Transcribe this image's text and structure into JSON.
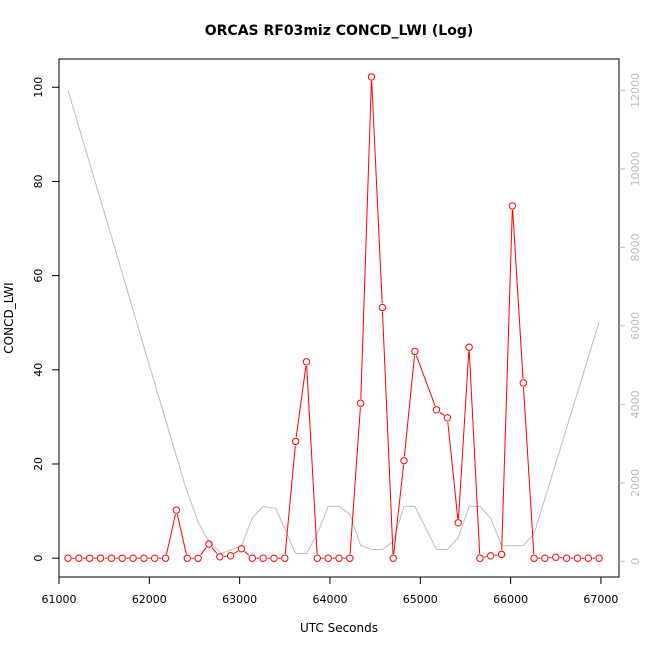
{
  "chart_data": {
    "type": "line",
    "title": "ORCAS RF03miz CONCD_LWI (Log)",
    "xlabel": "UTC Seconds",
    "ylabel": "CONCD_LWI",
    "xlim": [
      61000,
      67200
    ],
    "ylim": [
      -4,
      106
    ],
    "y2lim": [
      -400,
      12800
    ],
    "x_ticks": [
      61000,
      62000,
      63000,
      64000,
      65000,
      66000,
      67000
    ],
    "x_tick_labels": [
      "61000",
      "62000",
      "63000",
      "64000",
      "65000",
      "66000",
      "67000"
    ],
    "y_ticks": [
      0,
      20,
      40,
      60,
      80,
      100
    ],
    "y_tick_labels": [
      "0",
      "20",
      "40",
      "60",
      "80",
      "100"
    ],
    "y2_ticks": [
      0,
      2000,
      4000,
      6000,
      8000,
      10000,
      12000
    ],
    "y2_tick_labels": [
      "0",
      "2000",
      "4000",
      "6000",
      "8000",
      "10000",
      "12000"
    ],
    "grid": false,
    "colors": {
      "primary": "#ff0000",
      "secondary": "#bebebe",
      "frame": "#000000"
    },
    "series": [
      {
        "axis": "left",
        "marker": "open-circle",
        "x": [
          61100,
          61220,
          61340,
          61460,
          61580,
          61700,
          61820,
          61940,
          62060,
          62180,
          62300,
          62420,
          62540,
          62660,
          62780,
          62900,
          63020,
          63140,
          63260,
          63380,
          63500,
          63620,
          63740,
          63860,
          63980,
          64100,
          64220,
          64340,
          64460,
          64580,
          64700,
          64820,
          64940,
          65180,
          65300,
          65420,
          65540,
          65660,
          65780,
          65900,
          66020,
          66140,
          66260,
          66380,
          66500,
          66620,
          66740,
          66860,
          66980
        ],
        "y": [
          0,
          0,
          0,
          0,
          0,
          0,
          0,
          0,
          0,
          0,
          10.2,
          0,
          0,
          3,
          0.3,
          0.5,
          2,
          0,
          0,
          0,
          0,
          24.8,
          41.7,
          0,
          0,
          0,
          0,
          32.9,
          102.2,
          53.2,
          0,
          20.7,
          43.9,
          31.5,
          29.8,
          7.5,
          44.8,
          0,
          0.5,
          0.8,
          74.8,
          37.2,
          0,
          0,
          0.2,
          0,
          0,
          0,
          0
        ]
      },
      {
        "axis": "right",
        "x": [
          61100,
          61500,
          62000,
          62400,
          62540,
          62660,
          62800,
          63020,
          63140,
          63260,
          63400,
          63620,
          63740,
          63860,
          63980,
          64100,
          64220,
          64340,
          64460,
          64580,
          64700,
          64820,
          64940,
          65180,
          65300,
          65420,
          65540,
          65660,
          65780,
          65900,
          66020,
          66140,
          66260,
          66500,
          66740,
          66980
        ],
        "y": [
          12000,
          8900,
          5000,
          1900,
          1000,
          500,
          200,
          400,
          1100,
          1400,
          1350,
          200,
          200,
          700,
          1400,
          1400,
          1200,
          400,
          300,
          300,
          500,
          1400,
          1400,
          300,
          300,
          600,
          1400,
          1400,
          1100,
          400,
          400,
          400,
          700,
          2500,
          4300,
          6100
        ]
      }
    ]
  }
}
